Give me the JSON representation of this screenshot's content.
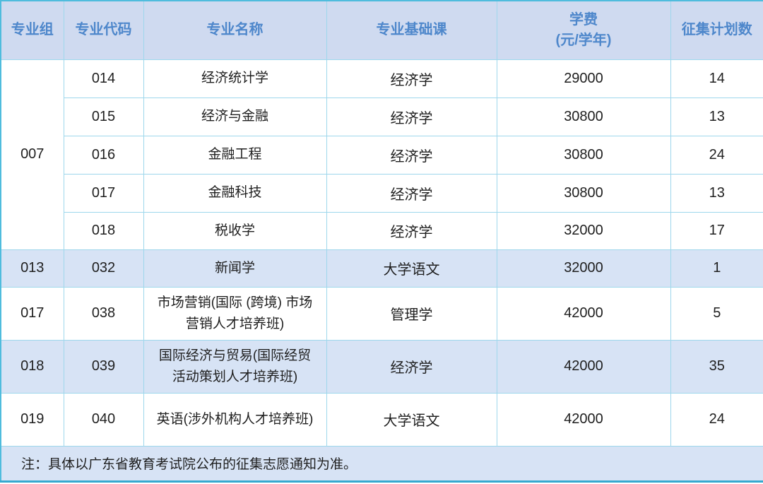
{
  "colors": {
    "header_bg": "#cfdaf0",
    "header_text": "#4e87cb",
    "stripe_bg": "#d7e3f5",
    "inner_border": "#9ed7ec",
    "outer_border": "#4fbcdd",
    "bottom_border": "#35a9cf",
    "body_text": "#1f1f1f"
  },
  "header": {
    "group": "专业组",
    "code": "专业代码",
    "name": "专业名称",
    "course": "专业基础课",
    "fee_line1": "学费",
    "fee_line2": "(元/学年)",
    "plan": "征集计划数"
  },
  "chart_data": {
    "type": "table",
    "columns": [
      "专业组",
      "专业代码",
      "专业名称",
      "专业基础课",
      "学费(元/学年)",
      "征集计划数"
    ],
    "rows": [
      {
        "group": "007",
        "code": "014",
        "name": "经济统计学",
        "course": "经济学",
        "fee": "29000",
        "plan": "14"
      },
      {
        "group": "007",
        "code": "015",
        "name": "经济与金融",
        "course": "经济学",
        "fee": "30800",
        "plan": "13"
      },
      {
        "group": "007",
        "code": "016",
        "name": "金融工程",
        "course": "经济学",
        "fee": "30800",
        "plan": "24"
      },
      {
        "group": "007",
        "code": "017",
        "name": "金融科技",
        "course": "经济学",
        "fee": "30800",
        "plan": "13"
      },
      {
        "group": "007",
        "code": "018",
        "name": "税收学",
        "course": "经济学",
        "fee": "32000",
        "plan": "17"
      },
      {
        "group": "013",
        "code": "032",
        "name": "新闻学",
        "course": "大学语文",
        "fee": "32000",
        "plan": "1"
      },
      {
        "group": "017",
        "code": "038",
        "name": "市场营销(国际 (跨境) 市场营销人才培养班)",
        "course": "管理学",
        "fee": "42000",
        "plan": "5"
      },
      {
        "group": "018",
        "code": "039",
        "name": "国际经济与贸易(国际经贸活动策划人才培养班)",
        "course": "经济学",
        "fee": "42000",
        "plan": "35"
      },
      {
        "group": "019",
        "code": "040",
        "name": "英语(涉外机构人才培养班)",
        "course": "大学语文",
        "fee": "42000",
        "plan": "24"
      }
    ],
    "note": "注：具体以广东省教育考试院公布的征集志愿通知为准。"
  }
}
